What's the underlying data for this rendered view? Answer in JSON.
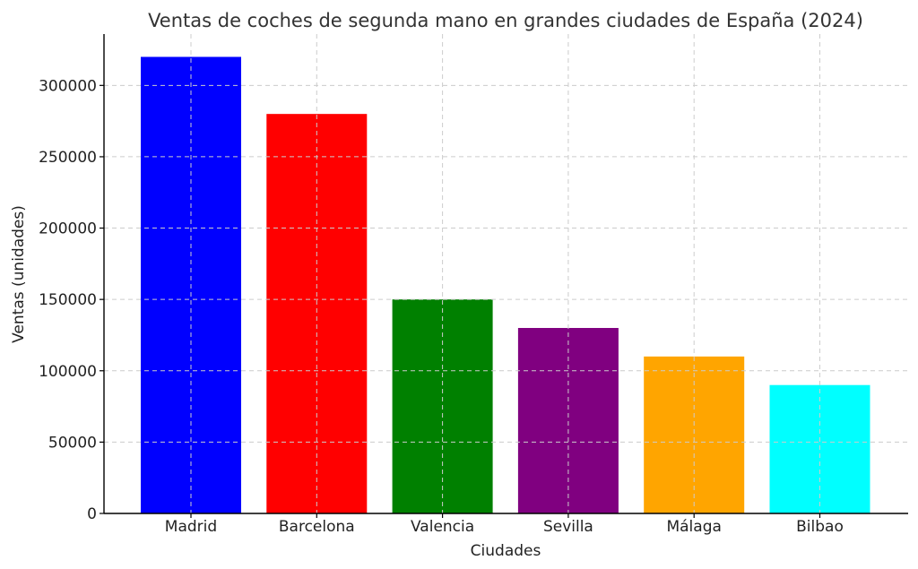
{
  "chart_data": {
    "type": "bar",
    "title": "Ventas de coches de segunda mano en grandes ciudades de España (2024)",
    "xlabel": "Ciudades",
    "ylabel": "Ventas (unidades)",
    "categories": [
      "Madrid",
      "Barcelona",
      "Valencia",
      "Sevilla",
      "Málaga",
      "Bilbao"
    ],
    "values": [
      320000,
      280000,
      150000,
      130000,
      110000,
      90000
    ],
    "colors": [
      "#0000ff",
      "#ff0000",
      "#008000",
      "#800080",
      "#ffa500",
      "#00ffff"
    ],
    "yticks": [
      0,
      50000,
      100000,
      150000,
      200000,
      250000,
      300000
    ],
    "ytick_labels": [
      "0",
      "50000",
      "100000",
      "150000",
      "200000",
      "250000",
      "300000"
    ],
    "ylim": [
      0,
      336000
    ],
    "grid": true
  }
}
